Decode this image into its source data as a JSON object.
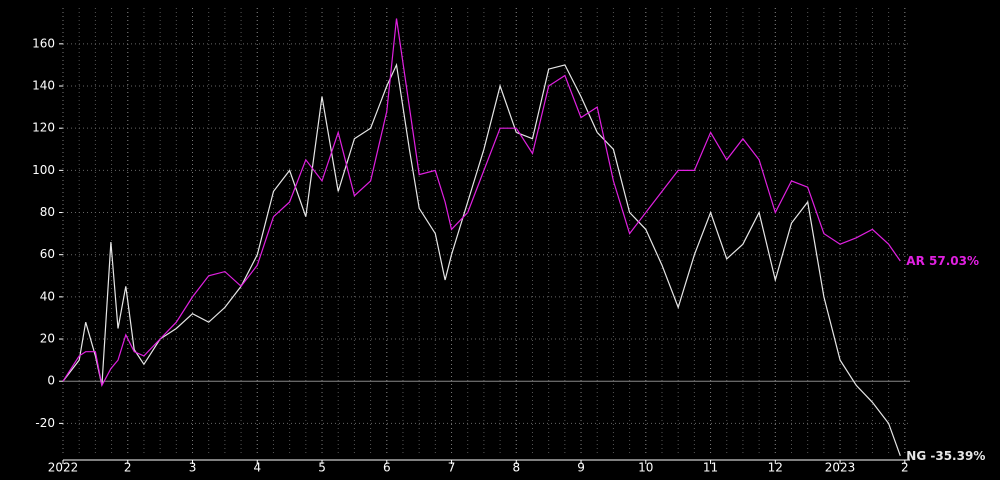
{
  "chart_data": {
    "type": "line",
    "x": [
      0,
      0.25,
      0.35,
      0.5,
      0.6,
      0.74,
      0.85,
      0.97,
      1.1,
      1.25,
      1.5,
      1.75,
      2,
      2.25,
      2.5,
      2.75,
      3,
      3.25,
      3.5,
      3.75,
      4,
      4.25,
      4.5,
      4.75,
      5,
      5.15,
      5.35,
      5.5,
      5.75,
      5.9,
      6,
      6.25,
      6.5,
      6.75,
      7,
      7.25,
      7.5,
      7.75,
      8,
      8.25,
      8.5,
      8.75,
      9,
      9.25,
      9.5,
      9.75,
      10,
      10.25,
      10.5,
      10.75,
      11,
      11.25,
      11.5,
      11.75,
      12,
      12.25,
      12.5,
      12.75,
      12.93
    ],
    "series": [
      {
        "name": "AR",
        "color": "#e020e0",
        "last_label": "57.03%",
        "values": [
          0,
          12,
          14,
          14,
          -2,
          6,
          10,
          22,
          14,
          12,
          20,
          28,
          40,
          50,
          52,
          45,
          55,
          78,
          85,
          105,
          95,
          118,
          88,
          95,
          128,
          172,
          130,
          98,
          100,
          85,
          72,
          80,
          100,
          120,
          120,
          108,
          140,
          145,
          125,
          130,
          95,
          70,
          80,
          90,
          100,
          100,
          118,
          105,
          115,
          105,
          80,
          95,
          92,
          70,
          65,
          68,
          72,
          65,
          57.03
        ]
      },
      {
        "name": "NG",
        "color": "#e6e6e6",
        "last_label": "-35.39%",
        "values": [
          0,
          10,
          28,
          12,
          -2,
          66,
          25,
          45,
          15,
          8,
          20,
          25,
          32,
          28,
          35,
          45,
          60,
          90,
          100,
          78,
          135,
          90,
          115,
          120,
          140,
          150,
          110,
          82,
          70,
          48,
          60,
          85,
          110,
          140,
          118,
          115,
          148,
          150,
          135,
          118,
          110,
          80,
          72,
          55,
          35,
          60,
          80,
          58,
          65,
          80,
          48,
          75,
          85,
          40,
          10,
          -2,
          -10,
          -20,
          -35.39
        ]
      }
    ],
    "xlim": [
      0,
      13.08
    ],
    "xticks": [
      {
        "value": 0,
        "label": "2022"
      },
      {
        "value": 1,
        "label": "2"
      },
      {
        "value": 2,
        "label": "3"
      },
      {
        "value": 3,
        "label": "4"
      },
      {
        "value": 4,
        "label": "5"
      },
      {
        "value": 5,
        "label": "6"
      },
      {
        "value": 6,
        "label": "7"
      },
      {
        "value": 7,
        "label": "8"
      },
      {
        "value": 8,
        "label": "9"
      },
      {
        "value": 9,
        "label": "10"
      },
      {
        "value": 10,
        "label": "11"
      },
      {
        "value": 11,
        "label": "12"
      },
      {
        "value": 12,
        "label": "2023"
      },
      {
        "value": 13,
        "label": "2"
      }
    ],
    "ylim": [
      -35,
      177
    ],
    "yticks": [
      -20,
      0,
      20,
      40,
      60,
      80,
      100,
      120,
      140,
      160
    ],
    "grid": true
  }
}
